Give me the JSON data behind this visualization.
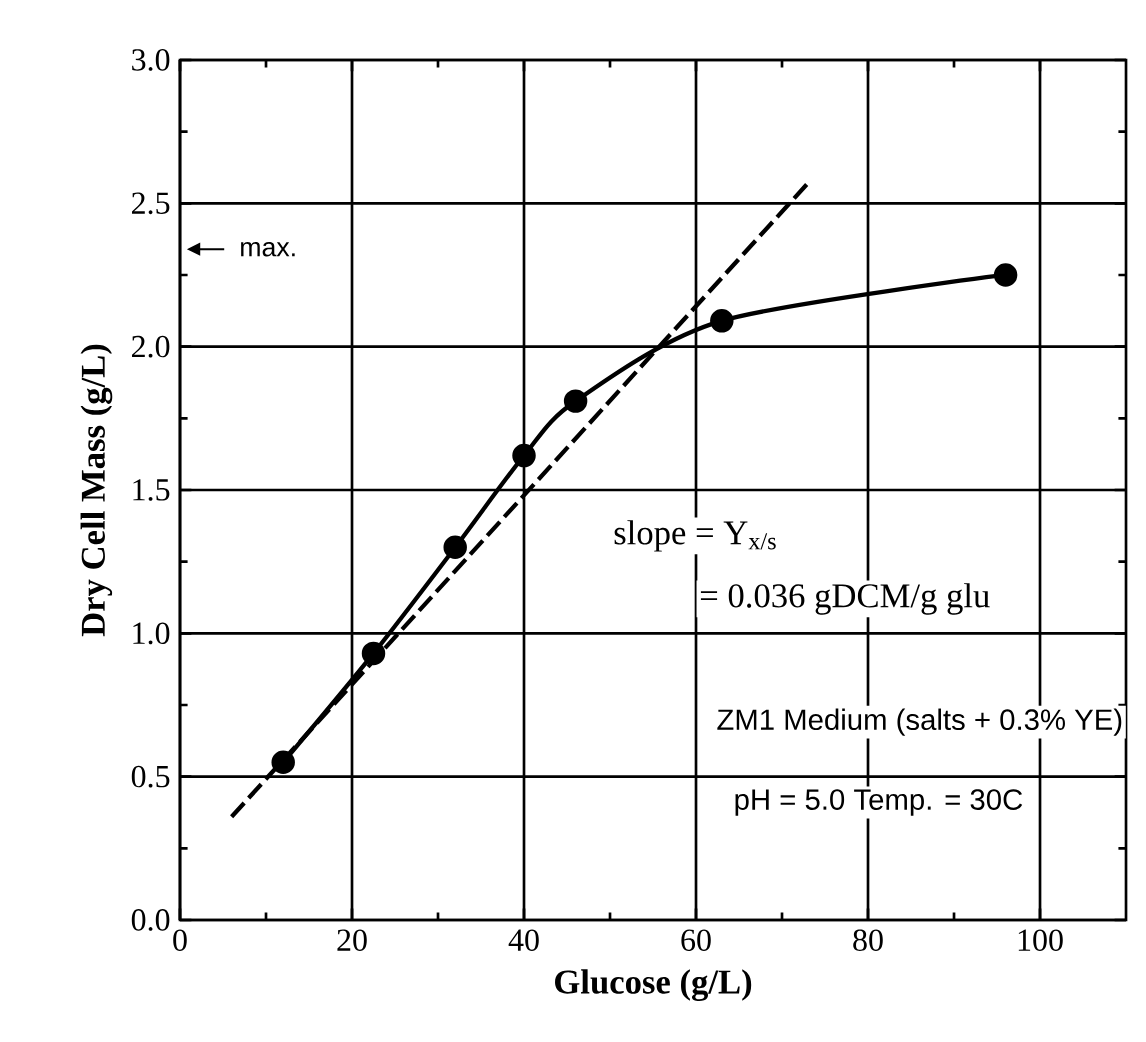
{
  "chart_data": {
    "type": "line",
    "xlabel": "Glucose (g/L)",
    "ylabel": "Dry Cell Mass  (g/L)",
    "xlim": [
      0,
      110
    ],
    "xticks": [
      0,
      20,
      40,
      60,
      80,
      100
    ],
    "ylim": [
      0,
      3.0
    ],
    "yticks": [
      {
        "value": 0,
        "label": "0.0"
      },
      {
        "value": 0.5,
        "label": "0.5"
      },
      {
        "value": 1,
        "label": "1.0"
      },
      {
        "value": 1.5,
        "label": "1.5"
      },
      {
        "value": 2,
        "label": "2.0"
      },
      {
        "value": 2.5,
        "label": "2.5"
      },
      {
        "value": 3,
        "label": "3.0"
      }
    ],
    "grid": true,
    "marker": "circle",
    "series": [
      {
        "color": "#000000",
        "x": [
          12,
          22.5,
          32,
          40,
          46,
          63,
          96
        ],
        "values": [
          0.55,
          0.93,
          1.3,
          1.62,
          1.81,
          2.09,
          2.25
        ]
      },
      {
        "type": "line",
        "color": "#000000",
        "line_style": "dashed",
        "marker": "none",
        "x": [
          6,
          73
        ],
        "values": [
          0.36,
          2.57
        ]
      }
    ],
    "annotations": [
      "max.",
      "slope = Y$_{x/s}$",
      "= 0.036 gDCM/g glu",
      "ZM1 Medium (salts + 0.3% YE)",
      "pH = 5.0     Temp. = 30C"
    ]
  }
}
